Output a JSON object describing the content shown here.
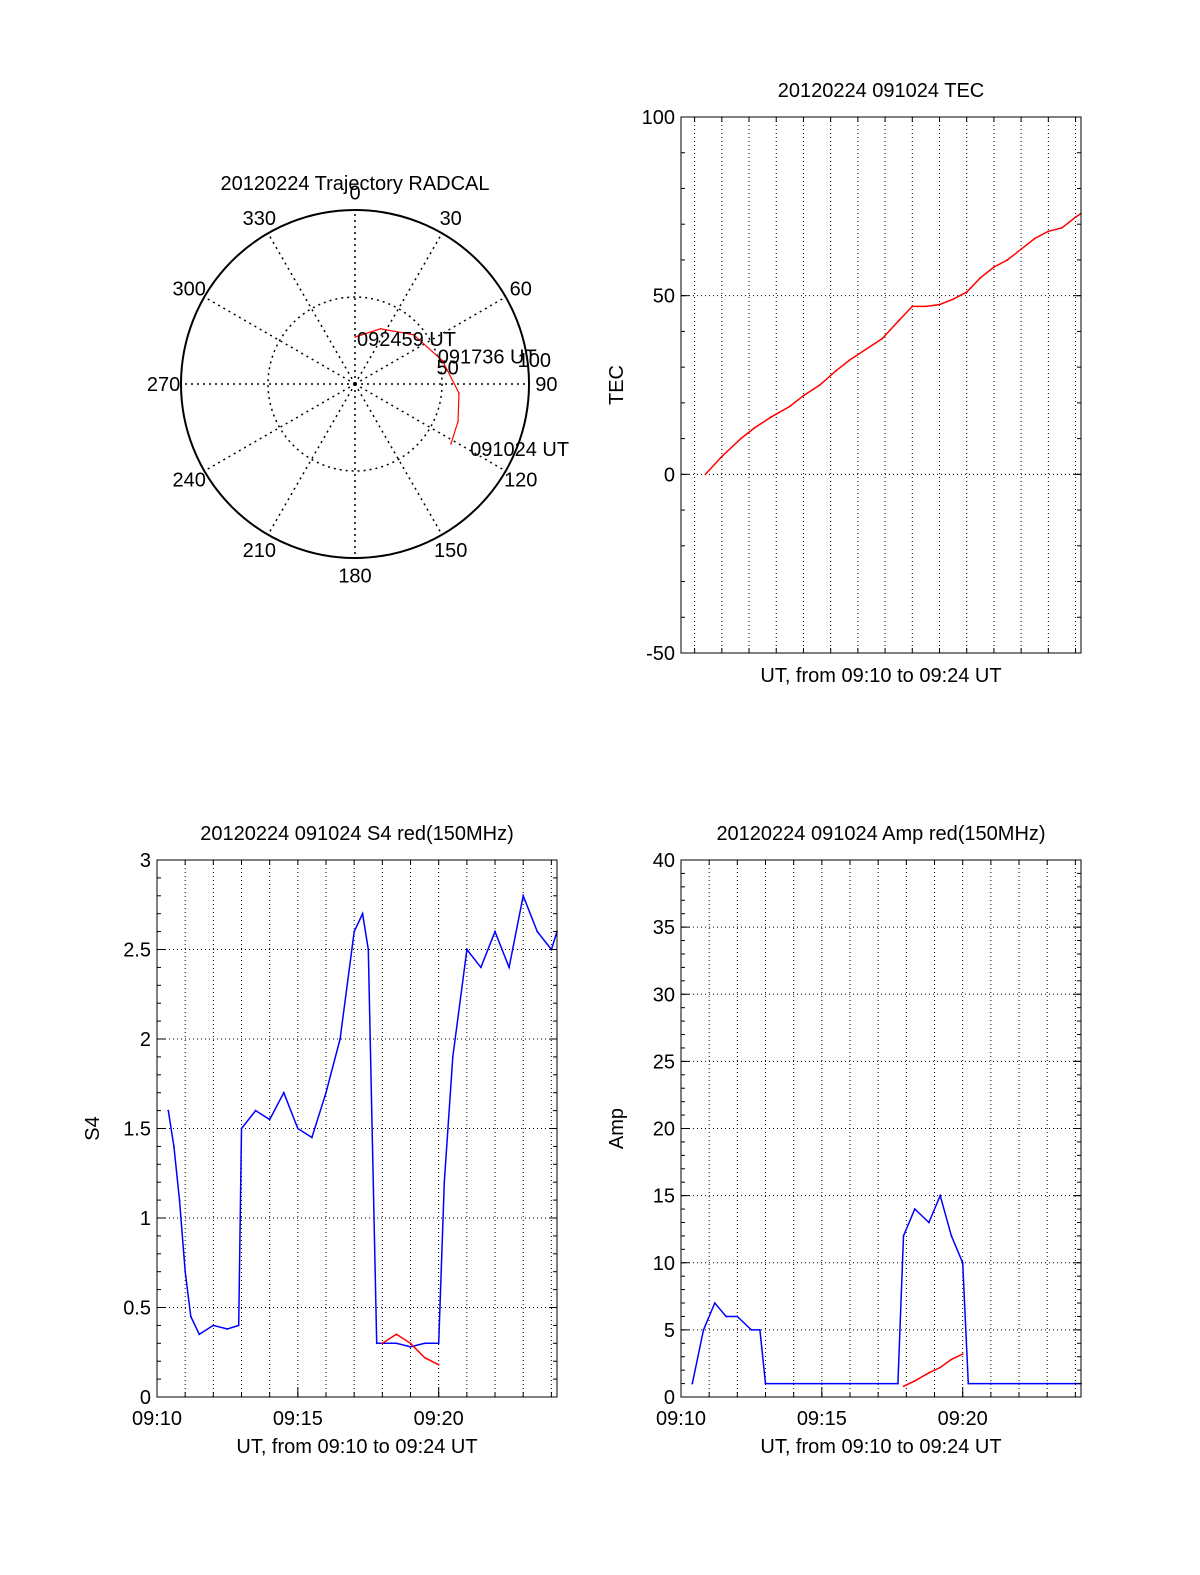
{
  "colors": {
    "red": "#ff0000",
    "blue": "#0000ff",
    "axis": "#000000",
    "grid": "#000000"
  },
  "chart_data": [
    {
      "id": "trajectory",
      "type": "scatter",
      "projection": "polar",
      "title": "20120224 Trajectory RADCAL",
      "azimuth_labels": [
        "0",
        "30",
        "60",
        "90",
        "120",
        "150",
        "180",
        "210",
        "240",
        "270",
        "300",
        "330"
      ],
      "elevation_rings": [
        {
          "label": "50",
          "value": 50
        },
        {
          "label": "100",
          "value": 100
        }
      ],
      "grid": true,
      "track": {
        "color": "red",
        "points": [
          {
            "az": 0,
            "el": 27
          },
          {
            "az": 25,
            "el": 35
          },
          {
            "az": 50,
            "el": 44
          },
          {
            "az": 75,
            "el": 52
          },
          {
            "az": 95,
            "el": 60
          },
          {
            "az": 110,
            "el": 63
          },
          {
            "az": 122,
            "el": 65
          }
        ]
      },
      "annotations": [
        {
          "text": "092459 UT",
          "az": 3,
          "el": 22
        },
        {
          "text": "091736 UT",
          "az": 76,
          "el": 49
        },
        {
          "text": "091024 UT",
          "az": 122,
          "el": 78
        }
      ]
    },
    {
      "id": "tec",
      "type": "line",
      "title": "20120224 091024 TEC",
      "xlabel": "UT, from 09:10 to 09:24 UT",
      "ylabel": "TEC",
      "ylim": [
        -50,
        100
      ],
      "yticks": [
        "-50",
        "0",
        "50",
        "100"
      ],
      "xlim_min": [
        9.5,
        24.2
      ],
      "xticks": [],
      "grid": true,
      "series": [
        {
          "color": "red",
          "x": [
            10.4,
            11.0,
            11.7,
            12.2,
            12.8,
            13.5,
            14.0,
            14.6,
            15.2,
            15.7,
            16.3,
            16.9,
            17.5,
            18.0,
            18.5,
            19.0,
            19.5,
            20.0,
            20.5,
            21.0,
            21.5,
            22.0,
            22.5,
            23.0,
            23.5,
            24.0,
            24.2
          ],
          "y": [
            0,
            5,
            10,
            13,
            16,
            19,
            22,
            25,
            29,
            32,
            35,
            38,
            43,
            47,
            47,
            47.5,
            49,
            51,
            55,
            58,
            60,
            63,
            66,
            68,
            69,
            72,
            73
          ]
        }
      ]
    },
    {
      "id": "s4",
      "type": "line",
      "title": "20120224 091024 S4 red(150MHz)",
      "xlabel": "UT, from 09:10 to 09:24 UT",
      "ylabel": "S4",
      "ylim": [
        0,
        3
      ],
      "yticks": [
        "0",
        "0.5",
        "1",
        "1.5",
        "2",
        "2.5",
        "3"
      ],
      "xlim_min": [
        10,
        24.2
      ],
      "xticks": [
        {
          "label": "09:10",
          "value": 10
        },
        {
          "label": "09:15",
          "value": 15
        },
        {
          "label": "09:20",
          "value": 20
        }
      ],
      "grid": true,
      "series": [
        {
          "color": "blue",
          "x": [
            10.4,
            10.6,
            10.8,
            11.0,
            11.2,
            11.5,
            12.0,
            12.5,
            12.9,
            13.0,
            13.5,
            14.0,
            14.5,
            15.0,
            15.5,
            16.0,
            16.5,
            17.0,
            17.3,
            17.5,
            17.8,
            18.5,
            19.0,
            19.5,
            20.0,
            20.2,
            20.5,
            21.0,
            21.5,
            22.0,
            22.5,
            23.0,
            23.5,
            24.0,
            24.2
          ],
          "y": [
            1.6,
            1.4,
            1.1,
            0.7,
            0.45,
            0.35,
            0.4,
            0.38,
            0.4,
            1.5,
            1.6,
            1.55,
            1.7,
            1.5,
            1.45,
            1.7,
            2.0,
            2.6,
            2.7,
            2.5,
            0.3,
            0.3,
            0.28,
            0.3,
            0.3,
            1.2,
            1.9,
            2.5,
            2.4,
            2.6,
            2.4,
            2.8,
            2.6,
            2.5,
            2.6
          ]
        },
        {
          "color": "red",
          "x": [
            18.0,
            18.5,
            19.0,
            19.5,
            20.0
          ],
          "y": [
            0.3,
            0.35,
            0.3,
            0.22,
            0.18
          ]
        }
      ]
    },
    {
      "id": "amp",
      "type": "line",
      "title": "20120224 091024 Amp red(150MHz)",
      "xlabel": "UT, from 09:10 to 09:24 UT",
      "ylabel": "Amp",
      "ylim": [
        0,
        40
      ],
      "yticks": [
        "0",
        "5",
        "10",
        "15",
        "20",
        "25",
        "30",
        "35",
        "40"
      ],
      "xlim_min": [
        10,
        24.2
      ],
      "xticks": [
        {
          "label": "09:10",
          "value": 10
        },
        {
          "label": "09:15",
          "value": 15
        },
        {
          "label": "09:20",
          "value": 20
        }
      ],
      "grid": true,
      "series": [
        {
          "color": "blue",
          "x": [
            10.4,
            10.8,
            11.2,
            11.6,
            12.0,
            12.5,
            12.8,
            13.0,
            14.0,
            15.0,
            16.0,
            17.0,
            17.7,
            17.9,
            18.3,
            18.8,
            19.2,
            19.6,
            20.0,
            20.2,
            21.0,
            22.0,
            23.0,
            24.0,
            24.2
          ],
          "y": [
            1,
            5,
            7,
            6,
            6,
            5,
            5,
            1,
            1,
            1,
            1,
            1,
            1,
            12,
            14,
            13,
            15,
            12,
            10,
            1,
            1,
            1,
            1,
            1,
            1
          ]
        },
        {
          "color": "red",
          "x": [
            17.9,
            18.3,
            18.8,
            19.2,
            19.6,
            20.0
          ],
          "y": [
            0.8,
            1.2,
            1.8,
            2.2,
            2.8,
            3.2
          ]
        }
      ]
    }
  ]
}
